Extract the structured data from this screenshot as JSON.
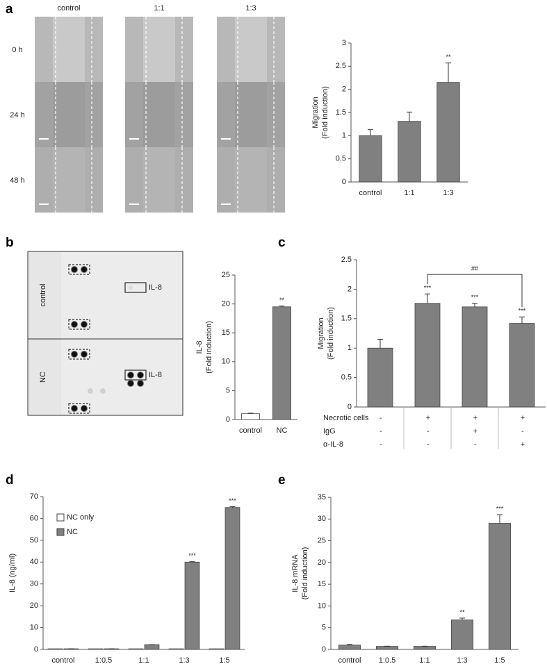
{
  "panel_labels": [
    "a",
    "b",
    "c",
    "d",
    "e"
  ],
  "micrograph": {
    "columns": [
      "control",
      "1:1",
      "1:3"
    ],
    "rows": [
      "0 h",
      "24 h",
      "48 h"
    ]
  },
  "array": {
    "rows": [
      "control",
      "NC"
    ],
    "spot_labels": [
      "IL-8",
      "IL-8"
    ]
  },
  "chart_data": [
    {
      "type": "bar",
      "ylabel": [
        "Migration",
        "(Fold induction)"
      ],
      "categories": [
        "control",
        "1:1",
        "1:3"
      ],
      "values": [
        1,
        1.31,
        2.15
      ],
      "errors": [
        0.13,
        0.2,
        0.42
      ],
      "annotations": [
        null,
        null,
        "**"
      ],
      "color": "#808080",
      "ylim": [
        0,
        3
      ],
      "yticks": [
        0,
        0.5,
        1,
        1.5,
        2,
        2.5,
        3
      ]
    },
    {
      "type": "bar",
      "ylabel": [
        "IL-8",
        "(Fold induction)"
      ],
      "categories": [
        "control",
        "NC"
      ],
      "values": [
        1,
        19.5
      ],
      "errors": [
        0.1,
        0.15
      ],
      "annotations": [
        null,
        "**"
      ],
      "colors": [
        "#ffffff",
        "#808080"
      ],
      "ylim": [
        0,
        25
      ],
      "yticks": [
        0,
        5,
        10,
        15,
        20,
        25
      ]
    },
    {
      "type": "bar",
      "ylabel": [
        "Migration",
        "(Fold induction)"
      ],
      "values": [
        1,
        1.76,
        1.7,
        1.42
      ],
      "errors": [
        0.15,
        0.16,
        0.06,
        0.11
      ],
      "annotations": [
        null,
        "***",
        "***",
        "***"
      ],
      "color": "#808080",
      "bracket_label": "##",
      "conditions": [
        {
          "name": "Necrotic cells",
          "marks": [
            "-",
            "+",
            "+",
            "+"
          ]
        },
        {
          "name": "IgG",
          "marks": [
            "-",
            "-",
            "+",
            "-"
          ]
        },
        {
          "name": "α-IL-8",
          "marks": [
            "-",
            "-",
            "-",
            "+"
          ]
        }
      ],
      "ylim": [
        0,
        2.5
      ],
      "yticks": [
        0,
        0.5,
        1,
        1.5,
        2,
        2.5
      ]
    },
    {
      "type": "bar",
      "ylabel": [
        "IL-8 (ng/ml)"
      ],
      "categories": [
        "control",
        "1:0.5",
        "1:1",
        "1:3",
        "1:5"
      ],
      "series": [
        {
          "name": "NC only",
          "color": "#ffffff",
          "values": [
            0.3,
            0.3,
            0.3,
            0.3,
            0.3
          ]
        },
        {
          "name": "NC",
          "color": "#808080",
          "values": [
            0.3,
            0.3,
            2.2,
            40,
            65
          ],
          "errors": [
            0,
            0,
            0,
            0.2,
            0.4
          ],
          "annotations": [
            null,
            null,
            null,
            "***",
            "***"
          ]
        }
      ],
      "legend": "upper left",
      "ylim": [
        0,
        70
      ],
      "yticks": [
        0,
        10,
        20,
        30,
        40,
        50,
        60,
        70
      ]
    },
    {
      "type": "bar",
      "ylabel": [
        "IL-8 mRNA",
        "(Fold induction)"
      ],
      "categories": [
        "control",
        "1:0.5",
        "1:1",
        "1:3",
        "1:5"
      ],
      "values": [
        1,
        0.7,
        0.7,
        6.8,
        29
      ],
      "errors": [
        0.15,
        0.05,
        0.05,
        0.4,
        2
      ],
      "annotations": [
        null,
        null,
        null,
        "**",
        "***"
      ],
      "color": "#808080",
      "ylim": [
        0,
        35
      ],
      "yticks": [
        0,
        5,
        10,
        15,
        20,
        25,
        30,
        35
      ]
    }
  ]
}
